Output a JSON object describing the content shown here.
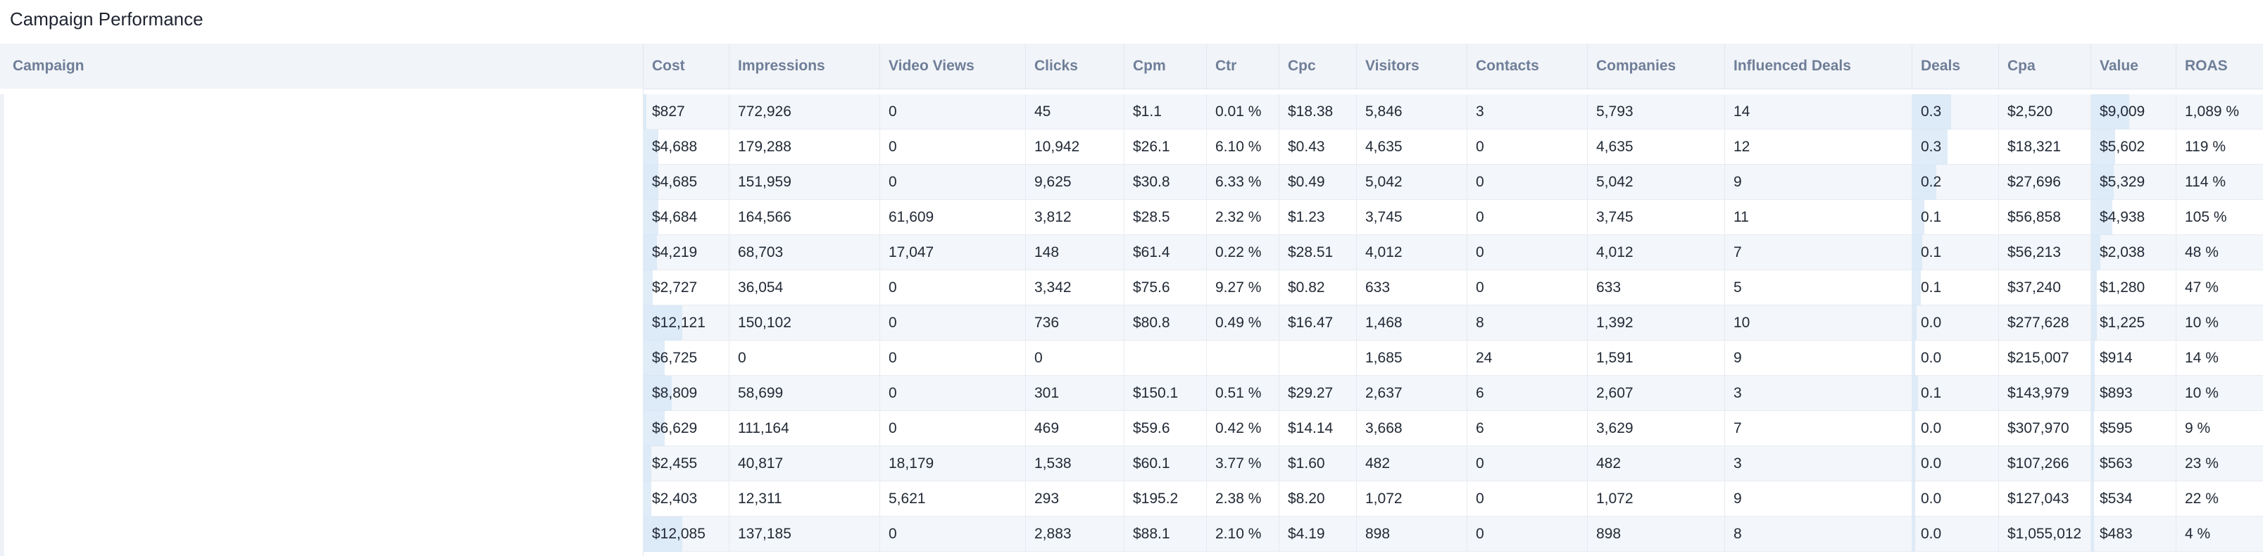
{
  "title": "Campaign Performance",
  "columns": [
    "Campaign",
    "Cost",
    "Impressions",
    "Video Views",
    "Clicks",
    "Cpm",
    "Ctr",
    "Cpc",
    "Visitors",
    "Contacts",
    "Companies",
    "Influenced Deals",
    "Deals",
    "Cpa",
    "Value",
    "ROAS"
  ],
  "rows": [
    {
      "cost": "$827",
      "impressions": "772,926",
      "video_views": "0",
      "clicks": "45",
      "cpm": "$1.1",
      "ctr": "0.01 %",
      "cpc": "$18.38",
      "visitors": "5,846",
      "contacts": "3",
      "companies": "5,793",
      "influenced_deals": "14",
      "deals": "0.3",
      "cpa": "$2,520",
      "value": "$9,009",
      "roas": "1,089 %",
      "cost_level": 0.07,
      "deals_level": 1.0,
      "value_level": 1.0
    },
    {
      "cost": "$4,688",
      "impressions": "179,288",
      "video_views": "0",
      "clicks": "10,942",
      "cpm": "$26.1",
      "ctr": "6.10 %",
      "cpc": "$0.43",
      "visitors": "4,635",
      "contacts": "0",
      "companies": "4,635",
      "influenced_deals": "12",
      "deals": "0.3",
      "cpa": "$18,321",
      "value": "$5,602",
      "roas": "119 %",
      "cost_level": 0.39,
      "deals_level": 0.9,
      "value_level": 0.62
    },
    {
      "cost": "$4,685",
      "impressions": "151,959",
      "video_views": "0",
      "clicks": "9,625",
      "cpm": "$30.8",
      "ctr": "6.33 %",
      "cpc": "$0.49",
      "visitors": "5,042",
      "contacts": "0",
      "companies": "5,042",
      "influenced_deals": "9",
      "deals": "0.2",
      "cpa": "$27,696",
      "value": "$5,329",
      "roas": "114 %",
      "cost_level": 0.39,
      "deals_level": 0.62,
      "value_level": 0.59
    },
    {
      "cost": "$4,684",
      "impressions": "164,566",
      "video_views": "61,609",
      "clicks": "3,812",
      "cpm": "$28.5",
      "ctr": "2.32 %",
      "cpc": "$1.23",
      "visitors": "3,745",
      "contacts": "0",
      "companies": "3,745",
      "influenced_deals": "11",
      "deals": "0.1",
      "cpa": "$56,858",
      "value": "$4,938",
      "roas": "105 %",
      "cost_level": 0.39,
      "deals_level": 0.3,
      "value_level": 0.55
    },
    {
      "cost": "$4,219",
      "impressions": "68,703",
      "video_views": "17,047",
      "clicks": "148",
      "cpm": "$61.4",
      "ctr": "0.22 %",
      "cpc": "$28.51",
      "visitors": "4,012",
      "contacts": "0",
      "companies": "4,012",
      "influenced_deals": "7",
      "deals": "0.1",
      "cpa": "$56,213",
      "value": "$2,038",
      "roas": "48 %",
      "cost_level": 0.35,
      "deals_level": 0.25,
      "value_level": 0.23
    },
    {
      "cost": "$2,727",
      "impressions": "36,054",
      "video_views": "0",
      "clicks": "3,342",
      "cpm": "$75.6",
      "ctr": "9.27 %",
      "cpc": "$0.82",
      "visitors": "633",
      "contacts": "0",
      "companies": "633",
      "influenced_deals": "5",
      "deals": "0.1",
      "cpa": "$37,240",
      "value": "$1,280",
      "roas": "47 %",
      "cost_level": 0.23,
      "deals_level": 0.22,
      "value_level": 0.14
    },
    {
      "cost": "$12,121",
      "impressions": "150,102",
      "video_views": "0",
      "clicks": "736",
      "cpm": "$80.8",
      "ctr": "0.49 %",
      "cpc": "$16.47",
      "visitors": "1,468",
      "contacts": "8",
      "companies": "1,392",
      "influenced_deals": "10",
      "deals": "0.0",
      "cpa": "$277,628",
      "value": "$1,225",
      "roas": "10 %",
      "cost_level": 1.0,
      "deals_level": 0.1,
      "value_level": 0.14
    },
    {
      "cost": "$6,725",
      "impressions": "0",
      "video_views": "0",
      "clicks": "0",
      "cpm": "",
      "ctr": "",
      "cpc": "",
      "visitors": "1,685",
      "contacts": "24",
      "companies": "1,591",
      "influenced_deals": "9",
      "deals": "0.0",
      "cpa": "$215,007",
      "value": "$914",
      "roas": "14 %",
      "cost_level": 0.55,
      "deals_level": 0.05,
      "value_level": 0.1
    },
    {
      "cost": "$8,809",
      "impressions": "58,699",
      "video_views": "0",
      "clicks": "301",
      "cpm": "$150.1",
      "ctr": "0.51 %",
      "cpc": "$29.27",
      "visitors": "2,637",
      "contacts": "6",
      "companies": "2,607",
      "influenced_deals": "3",
      "deals": "0.1",
      "cpa": "$143,979",
      "value": "$893",
      "roas": "10 %",
      "cost_level": 0.73,
      "deals_level": 0.15,
      "value_level": 0.1
    },
    {
      "cost": "$6,629",
      "impressions": "111,164",
      "video_views": "0",
      "clicks": "469",
      "cpm": "$59.6",
      "ctr": "0.42 %",
      "cpc": "$14.14",
      "visitors": "3,668",
      "contacts": "6",
      "companies": "3,629",
      "influenced_deals": "7",
      "deals": "0.0",
      "cpa": "$307,970",
      "value": "$595",
      "roas": "9 %",
      "cost_level": 0.55,
      "deals_level": 0.05,
      "value_level": 0.07
    },
    {
      "cost": "$2,455",
      "impressions": "40,817",
      "video_views": "18,179",
      "clicks": "1,538",
      "cpm": "$60.1",
      "ctr": "3.77 %",
      "cpc": "$1.60",
      "visitors": "482",
      "contacts": "0",
      "companies": "482",
      "influenced_deals": "3",
      "deals": "0.0",
      "cpa": "$107,266",
      "value": "$563",
      "roas": "23 %",
      "cost_level": 0.2,
      "deals_level": 0.05,
      "value_level": 0.06
    },
    {
      "cost": "$2,403",
      "impressions": "12,311",
      "video_views": "5,621",
      "clicks": "293",
      "cpm": "$195.2",
      "ctr": "2.38 %",
      "cpc": "$8.20",
      "visitors": "1,072",
      "contacts": "0",
      "companies": "1,072",
      "influenced_deals": "9",
      "deals": "0.0",
      "cpa": "$127,043",
      "value": "$534",
      "roas": "22 %",
      "cost_level": 0.2,
      "deals_level": 0.05,
      "value_level": 0.06
    },
    {
      "cost": "$12,085",
      "impressions": "137,185",
      "video_views": "0",
      "clicks": "2,883",
      "cpm": "$88.1",
      "ctr": "2.10 %",
      "cpc": "$4.19",
      "visitors": "898",
      "contacts": "0",
      "companies": "898",
      "influenced_deals": "8",
      "deals": "0.0",
      "cpa": "$1,055,012",
      "value": "$483",
      "roas": "4 %",
      "cost_level": 1.0,
      "deals_level": 0.05,
      "value_level": 0.05
    }
  ],
  "colors": {
    "bar": "#d5e6f6",
    "header_bg": "#f1f4f8",
    "header_text": "#6f7e98",
    "alt_row": "#f3f6fa"
  }
}
